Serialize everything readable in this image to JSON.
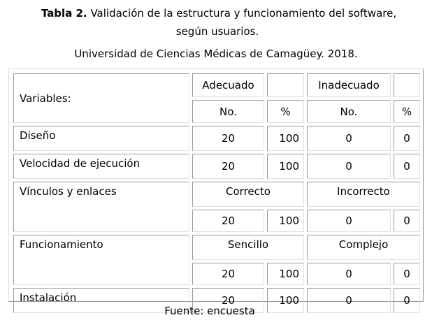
{
  "caption": {
    "label": "Tabla 2.",
    "title_line1": " Validación de la estructura y funcionamiento del software,",
    "title_line2": "según usuarios.",
    "subtitle": "Universidad de Ciencias Médicas de Camagüey. 2018."
  },
  "header": {
    "variables": "Variables:",
    "adecuado": "Adecuado",
    "inadecuado": "Inadecuado",
    "no": "No.",
    "pct": "%"
  },
  "rows": {
    "diseno": {
      "label": "Diseño",
      "n1": "20",
      "p1": "100",
      "n2": "0",
      "p2": "0"
    },
    "velocidad": {
      "label": "Velocidad de ejecución",
      "n1": "20",
      "p1": "100",
      "n2": "0",
      "p2": "0"
    },
    "vinculos": {
      "label": "Vínculos y enlaces",
      "h1": "Correcto",
      "h2": "Incorrecto",
      "n1": "20",
      "p1": "100",
      "n2": "0",
      "p2": "0"
    },
    "funcionamiento": {
      "label": "Funcionamiento",
      "h1": "Sencillo",
      "h2": "Complejo",
      "n1": "20",
      "p1": "100",
      "n2": "0",
      "p2": "0"
    },
    "instalacion": {
      "label": "Instalación",
      "n1": "20",
      "p1": "100",
      "n2": "0",
      "p2": "0"
    }
  },
  "source": "Fuente: encuesta"
}
